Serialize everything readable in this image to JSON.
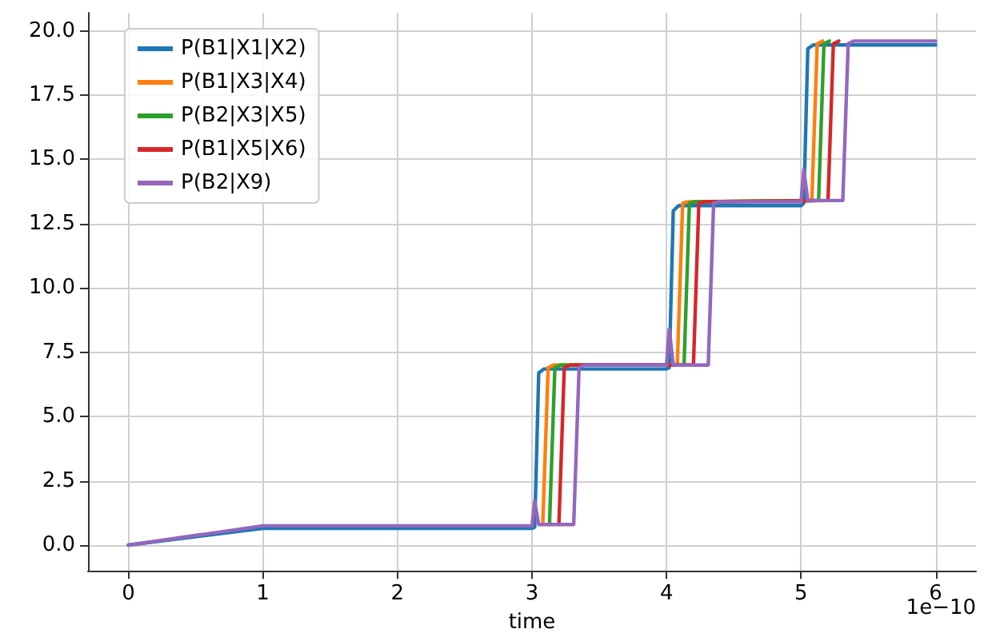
{
  "chart_data": {
    "type": "line",
    "xlabel": "time",
    "annotations": [
      "1e−10"
    ],
    "xlim": [
      -0.3,
      6.3
    ],
    "xticks": [
      0,
      1,
      2,
      3,
      4,
      5,
      6
    ],
    "ylim": [
      -1,
      20.7
    ],
    "yticks": [
      {
        "value": 0,
        "label": "0.0"
      },
      {
        "value": 2.5,
        "label": "2.5"
      },
      {
        "value": 5,
        "label": "5.0"
      },
      {
        "value": 7.5,
        "label": "7.5"
      },
      {
        "value": 10,
        "label": "10.0"
      },
      {
        "value": 12.5,
        "label": "12.5"
      },
      {
        "value": 15,
        "label": "15.0"
      },
      {
        "value": 17.5,
        "label": "17.5"
      },
      {
        "value": 20,
        "label": "20.0"
      }
    ],
    "grid": true,
    "legend": "top left",
    "marker": "none",
    "line_style": "solid",
    "series": [
      {
        "name": "P(B1|X1|X2)",
        "color": "#1f77b4",
        "x": [
          0,
          1,
          3,
          3.02,
          3.05,
          3.09,
          4,
          4.02,
          4.05,
          4.09,
          5,
          5.02,
          5.05,
          5.09,
          6
        ],
        "values": [
          0,
          0.65,
          0.65,
          0.7,
          6.7,
          6.85,
          6.85,
          6.9,
          13.0,
          13.2,
          13.2,
          13.3,
          19.3,
          19.45,
          19.45
        ]
      },
      {
        "name": "P(B1|X3|X4)",
        "color": "#ff7f0e",
        "x": [
          3.08,
          3.12,
          3.16,
          4.08,
          4.12,
          4.16,
          5.08,
          5.12,
          5.16
        ],
        "values": [
          0.8,
          6.9,
          7.0,
          7.0,
          13.3,
          13.35,
          13.4,
          19.5,
          19.6
        ]
      },
      {
        "name": "P(B2|X3|X5)",
        "color": "#2ca02c",
        "x": [
          3.13,
          3.17,
          3.21,
          4.13,
          4.17,
          4.21,
          5.13,
          5.17,
          5.21
        ],
        "values": [
          0.8,
          6.9,
          7.0,
          7.0,
          13.3,
          13.35,
          13.4,
          19.5,
          19.6
        ]
      },
      {
        "name": "P(B1|X5|X6)",
        "color": "#d62728",
        "x": [
          3.2,
          3.24,
          3.28,
          4.2,
          4.24,
          4.28,
          5.2,
          5.24,
          5.28
        ],
        "values": [
          0.8,
          6.9,
          7.0,
          7.0,
          13.3,
          13.35,
          13.4,
          19.5,
          19.6
        ]
      },
      {
        "name": "P(B2|X9)",
        "color": "#9467bd",
        "x": [
          0,
          1,
          3,
          3.02,
          3.05,
          3.31,
          3.35,
          3.39,
          4,
          4.02,
          4.05,
          4.31,
          4.35,
          4.39,
          5,
          5.02,
          5.05,
          5.31,
          5.35,
          5.39,
          6
        ],
        "values": [
          0,
          0.75,
          0.75,
          1.7,
          0.8,
          0.8,
          6.9,
          7.0,
          7.0,
          8.4,
          7.0,
          7.0,
          13.3,
          13.35,
          13.35,
          14.6,
          13.4,
          13.4,
          19.5,
          19.6,
          19.6
        ]
      }
    ]
  }
}
